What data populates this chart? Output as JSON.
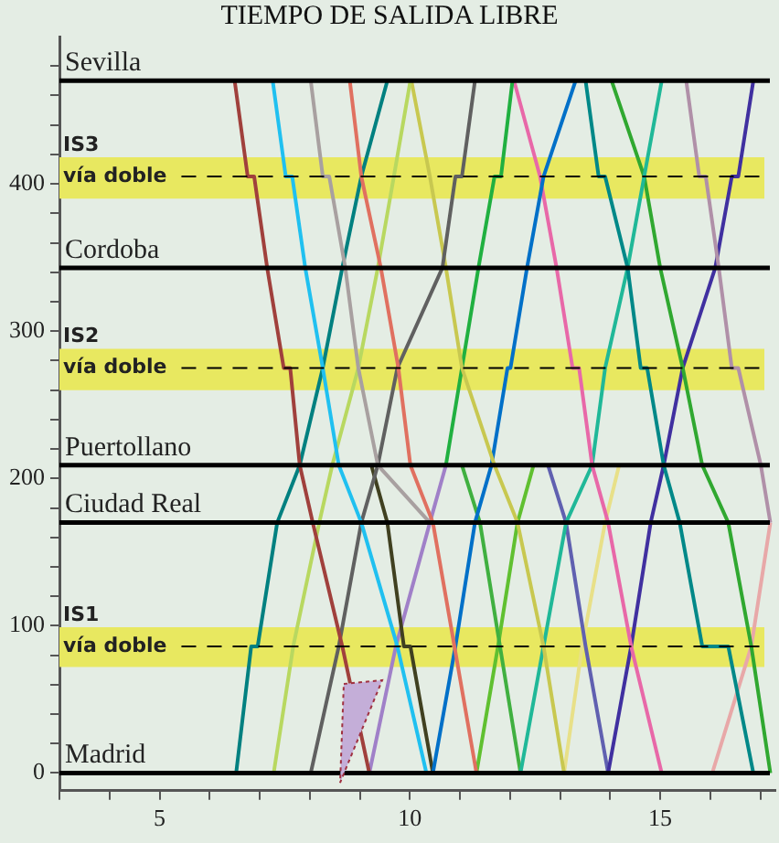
{
  "chart_data": {
    "type": "line",
    "title": "TIEMPO DE SALIDA LIBRE",
    "xlim": [
      3,
      17.3
    ],
    "ylim": [
      -12,
      500
    ],
    "xticks": [
      {
        "value": 3,
        "label": null
      },
      {
        "value": 4,
        "label": null
      },
      5,
      {
        "value": 6,
        "label": null
      },
      {
        "value": 7,
        "label": null
      },
      {
        "value": 8,
        "label": null
      },
      {
        "value": 9,
        "label": null
      },
      10,
      {
        "value": 11,
        "label": null
      },
      {
        "value": 12,
        "label": null
      },
      {
        "value": 13,
        "label": null
      },
      {
        "value": 14,
        "label": null
      },
      15,
      {
        "value": 16,
        "label": null
      },
      {
        "value": 17,
        "label": null
      }
    ],
    "yticks": [
      0,
      {
        "value": 20,
        "label": null
      },
      {
        "value": 40,
        "label": null
      },
      {
        "value": 60,
        "label": null
      },
      {
        "value": 80,
        "label": null
      },
      100,
      {
        "value": 120,
        "label": null
      },
      {
        "value": 140,
        "label": null
      },
      {
        "value": 160,
        "label": null
      },
      {
        "value": 180,
        "label": null
      },
      200,
      {
        "value": 220,
        "label": null
      },
      {
        "value": 240,
        "label": null
      },
      {
        "value": 260,
        "label": null
      },
      {
        "value": 280,
        "label": null
      },
      300,
      {
        "value": 320,
        "label": null
      },
      {
        "value": 340,
        "label": null
      },
      {
        "value": 360,
        "label": null
      },
      {
        "value": 380,
        "label": null
      },
      400,
      {
        "value": 420,
        "label": null
      },
      {
        "value": 440,
        "label": null
      },
      {
        "value": 460,
        "label": null
      },
      {
        "value": 480,
        "label": null
      }
    ],
    "grid": false,
    "legend": false,
    "marker": "none",
    "line_style": "solid",
    "series": [
      {
        "color": "#a0403c",
        "x": [
          6.5,
          6.76,
          6.89,
          7.15,
          7.48,
          7.61,
          7.8,
          8.06,
          8.65,
          9.19
        ],
        "values": [
          470,
          405,
          405,
          343,
          275,
          275,
          209,
          170,
          86,
          0
        ]
      },
      {
        "color": "#20c0f0",
        "x": [
          7.26,
          7.52,
          7.65,
          7.91,
          8.26,
          8.58,
          9.03,
          9.75,
          10.33
        ],
        "values": [
          470,
          405,
          405,
          343,
          275,
          209,
          170,
          86,
          0
        ]
      },
      {
        "color": "#a8a0a0",
        "x": [
          8.02,
          8.26,
          8.39,
          8.71,
          8.97,
          9.36,
          10.4
        ],
        "values": [
          470,
          405,
          405,
          343,
          275,
          209,
          170
        ]
      },
      {
        "color": "#e07060",
        "x": [
          8.8,
          9.03,
          9.42,
          9.77,
          10.01,
          10.46,
          10.89,
          11.33
        ],
        "values": [
          470,
          405,
          343,
          275,
          209,
          170,
          86,
          0
        ]
      },
      {
        "color": "#008080",
        "x": [
          6.53,
          6.83,
          6.96,
          7.35,
          7.8,
          8.26,
          8.65,
          9.03,
          9.55
        ],
        "values": [
          0,
          86,
          86,
          170,
          209,
          275,
          343,
          405,
          470
        ]
      },
      {
        "color": "#b8d860",
        "x": [
          7.28,
          7.67,
          8.19,
          8.45,
          8.97,
          9.36,
          9.68,
          10.01
        ],
        "values": [
          0,
          86,
          170,
          209,
          275,
          343,
          405,
          470
        ]
      },
      {
        "color": "#606060",
        "x": [
          8.02,
          8.58,
          9.03,
          9.36,
          9.75,
          10.65,
          10.91,
          11.04,
          11.3
        ],
        "values": [
          0,
          86,
          170,
          209,
          275,
          343,
          405,
          405,
          470
        ]
      },
      {
        "color": "#c8c850",
        "x": [
          10.03,
          10.4,
          10.72,
          11.04,
          11.69,
          12.15,
          12.67,
          13.08
        ],
        "values": [
          470,
          405,
          343,
          275,
          209,
          170,
          86,
          0
        ]
      },
      {
        "color": "#20b040",
        "x": [
          10.72,
          11.04,
          11.37,
          11.69,
          11.82,
          12.05
        ],
        "values": [
          209,
          275,
          343,
          405,
          405,
          470
        ]
      },
      {
        "color": "#0070c8",
        "x": [
          10.46,
          10.91,
          11.3,
          11.63,
          11.95,
          12.01,
          12.34,
          12.67,
          13.31
        ],
        "values": [
          0,
          86,
          170,
          209,
          275,
          275,
          343,
          405,
          470
        ]
      },
      {
        "color": "#e868a8",
        "x": [
          12.08,
          12.6,
          12.93,
          13.25,
          13.38,
          13.64,
          13.96,
          14.42,
          15.03
        ],
        "values": [
          470,
          405,
          343,
          275,
          275,
          209,
          170,
          86,
          0
        ]
      },
      {
        "color": "#008888",
        "x": [
          13.51,
          13.77,
          13.9,
          14.35,
          14.61,
          14.74,
          15.07,
          15.39,
          15.84,
          16.36,
          16.86
        ],
        "values": [
          470,
          405,
          405,
          343,
          275,
          275,
          209,
          170,
          86,
          86,
          0
        ]
      },
      {
        "color": "#20b898",
        "x": [
          12.21,
          12.67,
          13.12,
          13.64,
          13.9,
          14.35,
          14.68,
          15.03
        ],
        "values": [
          0,
          86,
          170,
          209,
          275,
          343,
          405,
          470
        ]
      },
      {
        "color": "#30a830",
        "x": [
          14.03,
          14.68,
          15.0,
          15.45,
          15.84,
          16.36,
          16.82,
          17.2
        ],
        "values": [
          470,
          405,
          343,
          275,
          209,
          170,
          86,
          0
        ]
      },
      {
        "color": "#b090a8",
        "x": [
          15.52,
          15.78,
          15.91,
          16.17,
          16.43,
          16.56,
          17.01,
          17.2
        ],
        "values": [
          470,
          405,
          405,
          343,
          275,
          275,
          209,
          170
        ]
      },
      {
        "color": "#e8a8a8",
        "x": [
          16.04,
          16.82,
          17.2
        ],
        "values": [
          0,
          86,
          170
        ]
      },
      {
        "color": "#4030a0",
        "x": [
          13.96,
          14.42,
          14.81,
          15.07,
          15.45,
          16.1,
          16.43,
          16.56,
          16.86
        ],
        "values": [
          0,
          86,
          170,
          209,
          275,
          343,
          405,
          405,
          470
        ]
      },
      {
        "color": "#6060b0",
        "x": [
          12.76,
          13.12,
          13.51,
          13.96
        ],
        "values": [
          209,
          170,
          86,
          0
        ]
      },
      {
        "color": "#e8e088",
        "x": [
          13.08,
          13.44,
          13.9,
          14.18
        ],
        "values": [
          0,
          86,
          170,
          209
        ]
      },
      {
        "color": "#40b040",
        "x": [
          11.04,
          11.4,
          11.8,
          12.21
        ],
        "values": [
          209,
          170,
          86,
          0
        ]
      },
      {
        "color": "#60c030",
        "x": [
          11.33,
          11.76,
          12.15,
          12.47
        ],
        "values": [
          0,
          86,
          170,
          209
        ]
      },
      {
        "color": "#404020",
        "x": [
          9.23,
          9.55,
          9.88,
          10.01,
          10.46
        ],
        "values": [
          209,
          170,
          86,
          86,
          0
        ]
      },
      {
        "color": "#a080c8",
        "x": [
          9.19,
          9.72,
          10.4,
          10.72
        ],
        "values": [
          0,
          86,
          170,
          209
        ]
      }
    ],
    "bands": [
      {
        "axis": "y",
        "from": 390,
        "to": 418,
        "label": "IS3",
        "color": "#e8e860"
      },
      {
        "axis": "y",
        "from": 260,
        "to": 288,
        "label": "IS2",
        "color": "#e8e860"
      },
      {
        "axis": "y",
        "from": 72,
        "to": 99,
        "label": "IS1",
        "color": "#e8e860"
      }
    ],
    "ref_lines": [
      {
        "axis": "y",
        "value": 470,
        "label": "Sevilla",
        "color": "#000000",
        "line_style": "solid"
      },
      {
        "axis": "y",
        "value": 405,
        "label": "vía doble",
        "color": "#000000",
        "line_style": "dashed"
      },
      {
        "axis": "y",
        "value": 343,
        "label": "Cordoba",
        "color": "#000000",
        "line_style": "solid"
      },
      {
        "axis": "y",
        "value": 275,
        "label": "vía doble",
        "color": "#000000",
        "line_style": "dashed"
      },
      {
        "axis": "y",
        "value": 209,
        "label": "Puertollano",
        "color": "#000000",
        "line_style": "solid"
      },
      {
        "axis": "y",
        "value": 170,
        "label": "Ciudad Real",
        "color": "#000000",
        "line_style": "solid"
      },
      {
        "axis": "y",
        "value": 86,
        "label": "vía doble",
        "color": "#000000",
        "line_style": "dashed"
      },
      {
        "axis": "y",
        "value": 0,
        "label": "Madrid",
        "color": "#000000",
        "line_style": "solid"
      }
    ]
  }
}
